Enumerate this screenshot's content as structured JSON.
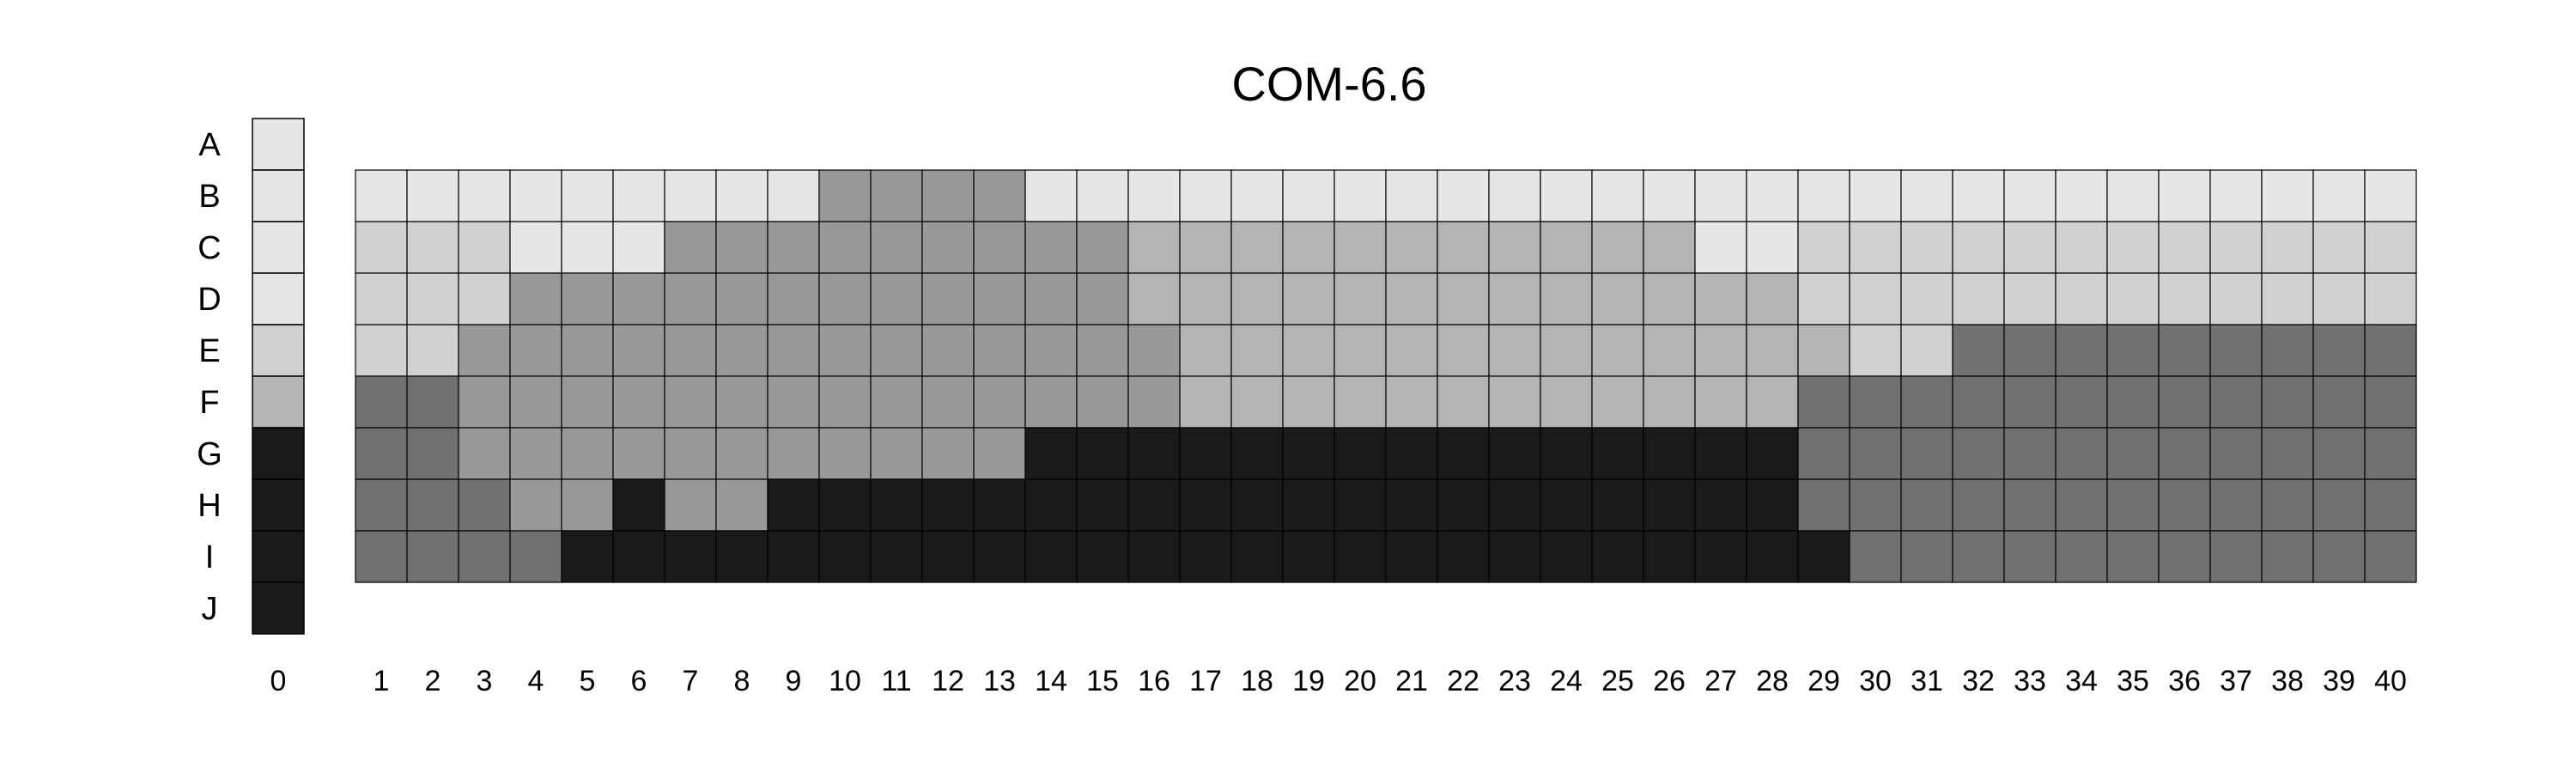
{
  "chart_data": {
    "type": "heatmap",
    "title": "COM-6.6",
    "rows": [
      "A",
      "B",
      "C",
      "D",
      "E",
      "F",
      "G",
      "H",
      "I",
      "J"
    ],
    "index_column": {
      "label": "0",
      "values": [
        1,
        1,
        1,
        1,
        2,
        3,
        6,
        6,
        6,
        6
      ]
    },
    "columns": [
      "1",
      "2",
      "3",
      "4",
      "5",
      "6",
      "7",
      "8",
      "9",
      "10",
      "11",
      "12",
      "13",
      "14",
      "15",
      "16",
      "17",
      "18",
      "19",
      "20",
      "21",
      "22",
      "23",
      "24",
      "25",
      "26",
      "27",
      "28",
      "29",
      "30",
      "31",
      "32",
      "33",
      "34",
      "35",
      "36",
      "37",
      "38",
      "39",
      "40"
    ],
    "row_range": [
      "B",
      "I"
    ],
    "levels": {
      "1": "#e6e6e6",
      "2": "#d0d0d0",
      "3": "#b4b4b4",
      "4": "#999999",
      "5": "#717171",
      "6": "#1a1a1a"
    },
    "grid": [
      [
        1,
        1,
        1,
        1,
        1,
        1,
        1,
        1,
        1,
        4,
        4,
        4,
        4,
        1,
        1,
        1,
        1,
        1,
        1,
        1,
        1,
        1,
        1,
        1,
        1,
        1,
        1,
        1,
        1,
        1,
        1,
        1,
        1,
        1,
        1,
        1,
        1,
        1,
        1,
        1
      ],
      [
        2,
        2,
        2,
        1,
        1,
        1,
        4,
        4,
        4,
        4,
        4,
        4,
        4,
        4,
        4,
        3,
        3,
        3,
        3,
        3,
        3,
        3,
        3,
        3,
        3,
        3,
        1,
        1,
        2,
        2,
        2,
        2,
        2,
        2,
        2,
        2,
        2,
        2,
        2,
        2
      ],
      [
        2,
        2,
        2,
        4,
        4,
        4,
        4,
        4,
        4,
        4,
        4,
        4,
        4,
        4,
        4,
        3,
        3,
        3,
        3,
        3,
        3,
        3,
        3,
        3,
        3,
        3,
        3,
        3,
        2,
        2,
        2,
        2,
        2,
        2,
        2,
        2,
        2,
        2,
        2,
        2
      ],
      [
        2,
        2,
        4,
        4,
        4,
        4,
        4,
        4,
        4,
        4,
        4,
        4,
        4,
        4,
        4,
        4,
        3,
        3,
        3,
        3,
        3,
        3,
        3,
        3,
        3,
        3,
        3,
        3,
        3,
        2,
        2,
        5,
        5,
        5,
        5,
        5,
        5,
        5,
        5,
        5
      ],
      [
        5,
        5,
        4,
        4,
        4,
        4,
        4,
        4,
        4,
        4,
        4,
        4,
        4,
        4,
        4,
        4,
        3,
        3,
        3,
        3,
        3,
        3,
        3,
        3,
        3,
        3,
        3,
        3,
        5,
        5,
        5,
        5,
        5,
        5,
        5,
        5,
        5,
        5,
        5,
        5
      ],
      [
        5,
        5,
        4,
        4,
        4,
        4,
        4,
        4,
        4,
        4,
        4,
        4,
        4,
        6,
        6,
        6,
        6,
        6,
        6,
        6,
        6,
        6,
        6,
        6,
        6,
        6,
        6,
        6,
        5,
        5,
        5,
        5,
        5,
        5,
        5,
        5,
        5,
        5,
        5,
        5
      ],
      [
        5,
        5,
        5,
        4,
        4,
        6,
        4,
        4,
        6,
        6,
        6,
        6,
        6,
        6,
        6,
        6,
        6,
        6,
        6,
        6,
        6,
        6,
        6,
        6,
        6,
        6,
        6,
        6,
        5,
        5,
        5,
        5,
        5,
        5,
        5,
        5,
        5,
        5,
        5,
        5
      ],
      [
        5,
        5,
        5,
        5,
        6,
        6,
        6,
        6,
        6,
        6,
        6,
        6,
        6,
        6,
        6,
        6,
        6,
        6,
        6,
        6,
        6,
        6,
        6,
        6,
        6,
        6,
        6,
        6,
        6,
        5,
        5,
        5,
        5,
        5,
        5,
        5,
        5,
        5,
        5,
        5
      ]
    ],
    "legend": "none"
  }
}
